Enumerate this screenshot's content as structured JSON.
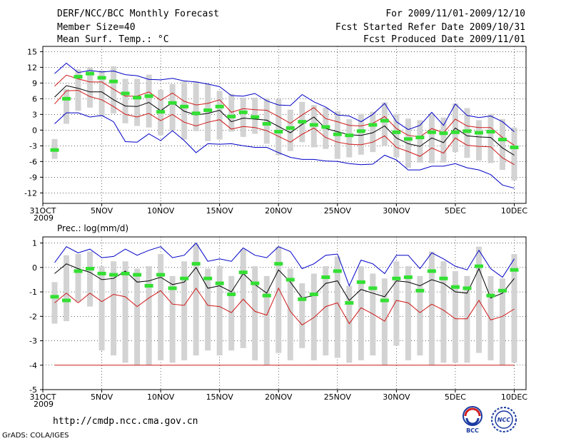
{
  "header": {
    "title": "DERF/NCC/BCC Monthly Forecast",
    "member": "Member Size=40",
    "variable": "Mean Surf. Temp.: °C",
    "period": "For 2009/11/01-2009/12/10",
    "refer": "Fcst Started Refer Date 2009/10/31",
    "produced": "Fcst Produced Date 2009/11/01"
  },
  "footer": {
    "url": "http://cmdp.ncc.cma.gov.cn",
    "grads": "GrADS: COLA/IGES",
    "logo_left": "BCC",
    "logo_right": "NCC"
  },
  "colors": {
    "box": "#d3d3d3",
    "obs": "#33e033",
    "mean": "#000000",
    "inner": "#d01818",
    "outer": "#0000c8",
    "grid": "#000000"
  },
  "chart_data": [
    {
      "type": "box-ensemble",
      "title": "Mean Surf. Temp.: °C",
      "ylabel": "Mean Surf. Temp. (°C)",
      "ylim": [
        -14,
        16
      ],
      "yticks": [
        15,
        12,
        9,
        6,
        3,
        0,
        -3,
        -6,
        -9,
        -12
      ],
      "xticks": [
        {
          "day": 0,
          "label": "31OCT",
          "sub": "2009"
        },
        {
          "day": 5,
          "label": "5NOV"
        },
        {
          "day": 10,
          "label": "10NOV"
        },
        {
          "day": 15,
          "label": "15NOV"
        },
        {
          "day": 20,
          "label": "20NOV"
        },
        {
          "day": 25,
          "label": "25NOV"
        },
        {
          "day": 30,
          "label": "30NOV"
        },
        {
          "day": 35,
          "label": "5DEC"
        },
        {
          "day": 40,
          "label": "10DEC"
        }
      ],
      "xlim": [
        0,
        41
      ],
      "observed_days": [
        1,
        2,
        3,
        4,
        5,
        6,
        7,
        8,
        9,
        10,
        11,
        12,
        13,
        14,
        15,
        16,
        17,
        18,
        19,
        20,
        21,
        22,
        23,
        24,
        25,
        26,
        27,
        28,
        29,
        30,
        31,
        32,
        33,
        34,
        35,
        36,
        37,
        38,
        39,
        40
      ],
      "observed": [
        -3.8,
        6,
        10.2,
        10.8,
        10,
        9.3,
        7,
        6.2,
        6.5,
        3.5,
        5.2,
        4.5,
        3.2,
        3.8,
        4.5,
        2.6,
        3.4,
        2.5,
        1.2,
        -0.3,
        0.4,
        1.6,
        1,
        0.6,
        -0.8,
        -1,
        -0.2,
        1,
        1.8,
        -0.4,
        -1.7,
        -1.4,
        -0.4,
        -0.6,
        -0.4,
        -0.2,
        -0.5,
        -0.3,
        -1.8,
        -3.3
      ],
      "box_days": [
        1,
        2,
        3,
        4,
        5,
        6,
        7,
        8,
        9,
        10,
        11,
        12,
        13,
        14,
        15,
        16,
        17,
        18,
        19,
        20,
        21,
        22,
        23,
        24,
        25,
        26,
        27,
        28,
        29,
        30,
        31,
        32,
        33,
        34,
        35,
        36,
        37,
        38,
        39,
        40
      ],
      "box_low": [
        -5.5,
        1.2,
        3.7,
        4.3,
        2.6,
        3.2,
        1.3,
        0.8,
        0.5,
        -1,
        -0.1,
        -1.8,
        -0.2,
        -2.1,
        -1.8,
        -0.3,
        -1.3,
        -0.7,
        -2.6,
        -4.8,
        -4,
        -2.3,
        -3.3,
        -3.6,
        -5.5,
        -5.2,
        -4.7,
        -4.2,
        -3,
        -5.2,
        -7.2,
        -6.2,
        -6.3,
        -6.2,
        -4.2,
        -5.3,
        -5.8,
        -6.3,
        -7.6,
        -9.6
      ],
      "box_high": [
        -1.7,
        7.8,
        11.6,
        12,
        11.4,
        12.2,
        9.8,
        9.8,
        10.6,
        7.7,
        8.8,
        9.3,
        9.3,
        8.8,
        7.5,
        6.9,
        6.2,
        6.2,
        6.1,
        5.9,
        3.9,
        5.4,
        4.8,
        4.3,
        3.6,
        2.1,
        3.1,
        3.5,
        5.3,
        3.1,
        2.2,
        1.9,
        3.1,
        2.4,
        5.1,
        4.2,
        1.9,
        3.1,
        2.1,
        0.5
      ],
      "series": [
        {
          "name": "ensemble mean",
          "color_key": "mean",
          "values": [
            6.3,
            8.5,
            8,
            7.3,
            7.3,
            5.8,
            4.6,
            4.5,
            5.3,
            3.7,
            5.3,
            3.6,
            2.9,
            3.2,
            3.8,
            1.6,
            2.3,
            2.1,
            1.9,
            0.7,
            -0.5,
            1.1,
            2.5,
            0.3,
            -0.3,
            -0.9,
            -1,
            -0.5,
            0.8,
            -1.5,
            -2.6,
            -3.1,
            -1.5,
            -2.4,
            0.4,
            -1.1,
            -1.3,
            -1.4,
            -3.4,
            -4.8
          ]
        },
        {
          "name": "upper band",
          "color_key": "inner",
          "values": [
            8.4,
            10.5,
            9.8,
            9.2,
            9.2,
            7.8,
            6.5,
            6.5,
            7.3,
            5.7,
            7.1,
            5.5,
            4.8,
            5.1,
            5.8,
            3.4,
            4.1,
            3.9,
            3.8,
            2.6,
            1.3,
            2.9,
            4.3,
            2.2,
            1.6,
            0.9,
            0.8,
            1.3,
            2.6,
            0.3,
            -1,
            -1.3,
            0.3,
            -0.5,
            2.1,
            0.8,
            0.5,
            0.5,
            -1.4,
            -2.9
          ]
        },
        {
          "name": "lower band",
          "color_key": "inner",
          "values": [
            5,
            7.5,
            7.6,
            6.4,
            5.8,
            4.5,
            3,
            2.5,
            3.2,
            1.8,
            3,
            1.5,
            0.8,
            1.5,
            2,
            0.2,
            0.7,
            0.5,
            -0.1,
            -1.2,
            -2.3,
            -0.8,
            0.4,
            -1.4,
            -2.3,
            -2.7,
            -2.8,
            -2.3,
            -1.1,
            -3.3,
            -4.1,
            -5,
            -3.4,
            -4.4,
            -1.5,
            -2.9,
            -3.1,
            -3.2,
            -5.3,
            -6.6
          ]
        },
        {
          "name": "maximum",
          "color_key": "outer",
          "values": [
            10.8,
            12.8,
            11,
            11.4,
            11.1,
            11.3,
            10.6,
            10.4,
            9.7,
            9.6,
            9.9,
            9.4,
            9.2,
            8.8,
            8.3,
            6.6,
            6.5,
            7,
            5.6,
            4.8,
            4.7,
            6.8,
            5.4,
            4.4,
            2.9,
            2.7,
            1.6,
            3,
            5.1,
            1.6,
            0.1,
            0.9,
            3.4,
            0.9,
            5,
            2.8,
            2.4,
            2.7,
            1.6,
            -0.3
          ]
        },
        {
          "name": "minimum",
          "color_key": "outer",
          "values": [
            1.2,
            3.3,
            3.3,
            2.5,
            2.8,
            1.6,
            -2.2,
            -2.3,
            -0.7,
            -2,
            -0.1,
            -2,
            -4.3,
            -2.6,
            -2.7,
            -2.6,
            -3,
            -3.3,
            -3.3,
            -4.3,
            -5.2,
            -5.6,
            -5.6,
            -5.9,
            -6,
            -6.4,
            -6.6,
            -6.5,
            -4.8,
            -5.7,
            -7.6,
            -7.6,
            -6.9,
            -6.9,
            -6.4,
            -7.2,
            -7.6,
            -8.5,
            -10.5,
            -11.1
          ]
        }
      ]
    },
    {
      "type": "box-ensemble",
      "title": "Prec.: log(mm/d)",
      "ylabel": "log(mm/d)",
      "ylim": [
        -5,
        1.25
      ],
      "yticks": [
        1,
        0,
        -1,
        -2,
        -3,
        -4,
        -5
      ],
      "xticks": [
        {
          "day": 0,
          "label": "31OCT",
          "sub": "2009"
        },
        {
          "day": 5,
          "label": "5NOV"
        },
        {
          "day": 10,
          "label": "10NOV"
        },
        {
          "day": 15,
          "label": "15NOV"
        },
        {
          "day": 20,
          "label": "20NOV"
        },
        {
          "day": 25,
          "label": "25NOV"
        },
        {
          "day": 30,
          "label": "30NOV"
        },
        {
          "day": 35,
          "label": "5DEC"
        },
        {
          "day": 40,
          "label": "10DEC"
        }
      ],
      "xlim": [
        0,
        41
      ],
      "observed_days": [
        1,
        2,
        3,
        4,
        5,
        6,
        7,
        8,
        9,
        10,
        11,
        12,
        13,
        14,
        15,
        16,
        17,
        18,
        19,
        20,
        21,
        22,
        23,
        24,
        25,
        26,
        27,
        28,
        29,
        30,
        31,
        32,
        33,
        34,
        35,
        36,
        37,
        38,
        39,
        40
      ],
      "observed": [
        -1.2,
        -1.35,
        -0.15,
        -0.05,
        -0.25,
        -0.3,
        -0.25,
        -0.3,
        -0.75,
        -0.3,
        -0.85,
        -0.45,
        0.15,
        -0.45,
        -0.65,
        -1.1,
        -0.2,
        -0.65,
        -1.15,
        0.15,
        -0.5,
        -1.3,
        -1.1,
        -0.4,
        -0.15,
        -1.45,
        -0.6,
        -0.85,
        -1.35,
        -0.45,
        -0.4,
        -0.95,
        -0.15,
        -0.45,
        -0.8,
        -0.85,
        0.05,
        -1.15,
        -0.95,
        -0.1
      ],
      "box_days": [
        1,
        2,
        3,
        4,
        5,
        6,
        7,
        8,
        9,
        10,
        11,
        12,
        13,
        14,
        15,
        16,
        17,
        18,
        19,
        20,
        21,
        22,
        23,
        24,
        25,
        26,
        27,
        28,
        29,
        30,
        31,
        32,
        33,
        34,
        35,
        36,
        37,
        38,
        39,
        40
      ],
      "box_low": [
        -2.3,
        -2.2,
        -1.4,
        -1.6,
        -3.4,
        -3.6,
        -3.9,
        -4,
        -4,
        -3.8,
        -3.9,
        -3.8,
        -3.6,
        -3.4,
        -3.6,
        -3.4,
        -3.3,
        -3.8,
        -4,
        -3.5,
        -3.8,
        -3.3,
        -3.8,
        -3.6,
        -3.7,
        -3.9,
        -3.8,
        -3.6,
        -4,
        -3.2,
        -3.8,
        -3.6,
        -4,
        -3.9,
        -3.9,
        -3.9,
        -3.5,
        -3.8,
        -4,
        -3.9
      ],
      "box_high": [
        -0.6,
        0.5,
        0.55,
        0.65,
        0.05,
        0.25,
        0.25,
        -0.05,
        0.05,
        0.55,
        -0.35,
        0.25,
        0.95,
        -0.05,
        0.05,
        -0.35,
        0.75,
        0.05,
        -0.35,
        0.85,
        -0.05,
        -0.65,
        -0.25,
        0.05,
        0.45,
        -0.75,
        0.05,
        -0.25,
        -0.45,
        0.25,
        0.05,
        -0.35,
        0.65,
        0.25,
        -0.15,
        -0.35,
        0.85,
        -0.35,
        -0.45,
        0.55
      ]
    }
  ],
  "prec_series": [
    {
      "name": "ensemble mean",
      "color_key": "mean",
      "values": [
        -0.25,
        0.15,
        -0.05,
        -0.2,
        -0.5,
        -0.45,
        -0.15,
        -0.6,
        -0.55,
        -0.4,
        -0.7,
        -0.6,
        0,
        -0.85,
        -0.75,
        -1,
        -0.25,
        -0.7,
        -1.05,
        -0.1,
        -0.6,
        -1.25,
        -1.15,
        -0.65,
        -0.55,
        -1.35,
        -0.9,
        -1.05,
        -1.2,
        -0.55,
        -0.6,
        -0.75,
        -0.5,
        -0.65,
        -1,
        -1.05,
        -0.05,
        -1.25,
        -1.05,
        -0.45
      ]
    },
    {
      "name": "lower band",
      "color_key": "inner",
      "values": [
        -1.45,
        -1.05,
        -1.45,
        -1.05,
        -1.4,
        -1.1,
        -1.2,
        -1.6,
        -1.25,
        -0.95,
        -1.5,
        -1.55,
        -0.85,
        -1.55,
        -1.6,
        -1.85,
        -1.3,
        -1.8,
        -1.95,
        -0.85,
        -1.8,
        -2.35,
        -2.05,
        -1.6,
        -1.45,
        -2.3,
        -1.65,
        -1.9,
        -2.2,
        -1.35,
        -1.45,
        -1.85,
        -1.5,
        -1.75,
        -2.1,
        -2.1,
        -1.35,
        -2.15,
        -2,
        -1.7
      ]
    },
    {
      "name": "maximum",
      "color_key": "outer",
      "values": [
        0.2,
        0.85,
        0.6,
        0.75,
        0.4,
        0.45,
        0.75,
        0.5,
        0.7,
        0.85,
        0.4,
        0.5,
        1,
        0.25,
        0.35,
        0.25,
        0.8,
        0.5,
        0.4,
        0.85,
        0.65,
        -0.05,
        0.15,
        0.5,
        0.55,
        -0.75,
        0.3,
        0.15,
        -0.25,
        0.5,
        0.5,
        -0.05,
        0.6,
        0.35,
        0.05,
        -0.1,
        0.7,
        -0.05,
        -0.4,
        0.35
      ]
    },
    {
      "name": "minimum",
      "color_key": "inner",
      "values": [
        -4,
        -4,
        -4,
        -4,
        -4,
        -4,
        -4,
        -4,
        -4,
        -4,
        -4,
        -4,
        -4,
        -4,
        -4,
        -4,
        -4,
        -4,
        -4,
        -4,
        -4,
        -4,
        -4,
        -4,
        -4,
        -4,
        -4,
        -4,
        -4,
        -4,
        -4,
        -4,
        -4,
        -4,
        -4,
        -4,
        -4,
        -4,
        -4,
        -4
      ]
    }
  ]
}
